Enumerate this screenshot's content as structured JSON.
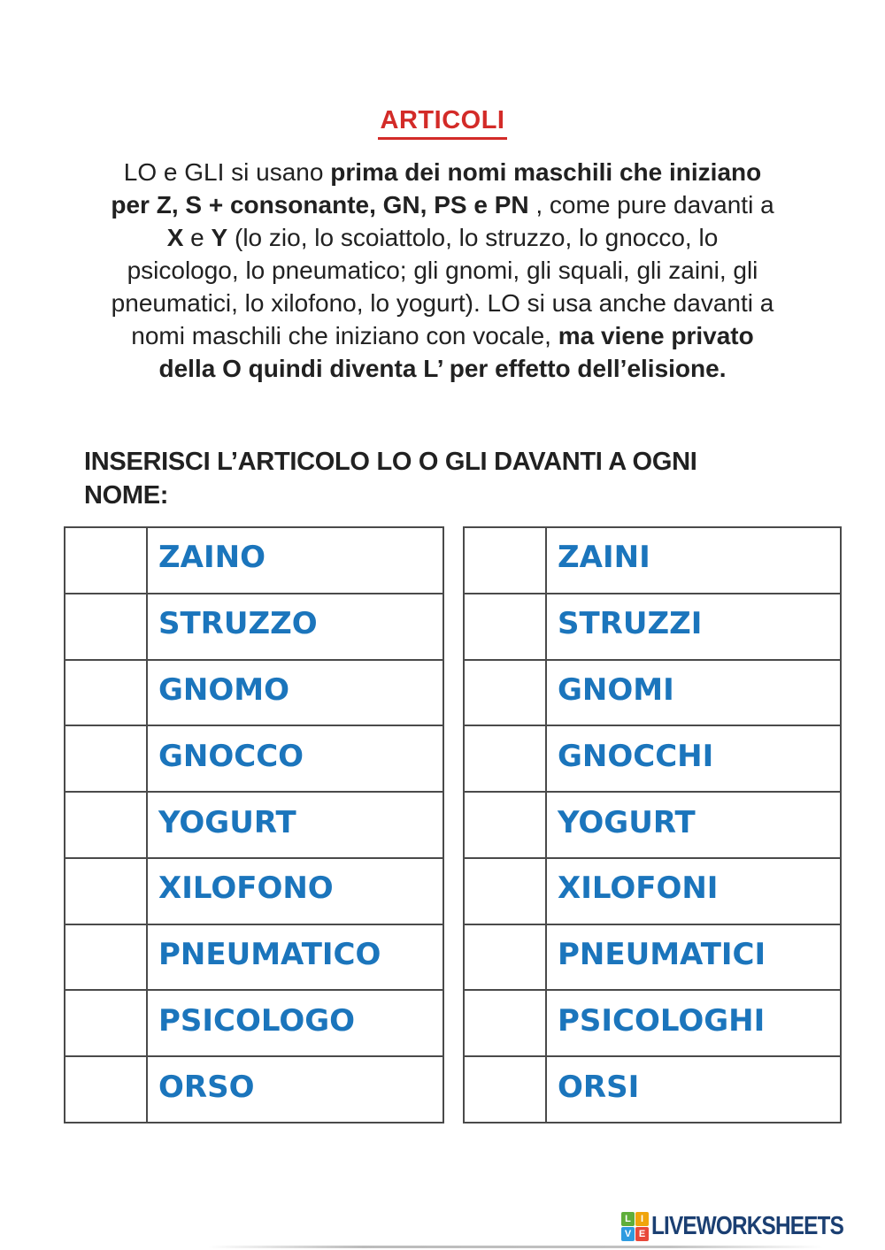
{
  "page": {
    "title": "ARTICOLI"
  },
  "colors": {
    "title_red": "#d32b28",
    "word_blue": "#1b75bc",
    "text_black": "#212121",
    "table_border": "#4a4a4a",
    "logo_navy": "#1b3f72"
  },
  "intro": {
    "lines": [
      [
        {
          "t": "LO e GLI si usano ",
          "b": 0
        },
        {
          "t": "prima dei nomi maschili che iniziano",
          "b": 1
        }
      ],
      [
        {
          "t": "per Z, S + consonante, GN, PS e PN",
          "b": 1
        },
        {
          "t": " , come pure davanti a",
          "b": 0
        }
      ],
      [
        {
          "t": "X",
          "b": 1
        },
        {
          "t": " e ",
          "b": 0
        },
        {
          "t": "Y",
          "b": 1
        },
        {
          "t": " (lo zio, lo scoiattolo, lo struzzo, lo gnocco, lo",
          "b": 0
        }
      ],
      [
        {
          "t": "psicologo, lo pneumatico; gli gnomi, gli squali, gli zaini, gli",
          "b": 0
        }
      ],
      [
        {
          "t": "pneumatici, lo xilofono, lo yogurt). LO si usa anche davanti a",
          "b": 0
        }
      ],
      [
        {
          "t": "nomi maschili che iniziano con vocale, ",
          "b": 0
        },
        {
          "t": "ma viene privato",
          "b": 1
        }
      ],
      [
        {
          "t": "della O quindi diventa L’ per effetto dell’elisione.",
          "b": 1
        }
      ]
    ]
  },
  "instruction": {
    "lines": [
      "INSERISCI L’ARTICOLO LO O GLI DAVANTI A OGNI",
      "NOME:"
    ]
  },
  "worksheet": {
    "answer_value": "",
    "left_table": {
      "words": [
        "ZAINO",
        "STRUZZO",
        "GNOMO",
        "GNOCCO",
        "YOGURT",
        "XILOFONO",
        "PNEUMATICO",
        "PSICOLOGO",
        "ORSO"
      ]
    },
    "right_table": {
      "words": [
        "ZAINI",
        "STRUZZI",
        "GNOMI",
        "GNOCCHI",
        "YOGURT",
        "XILOFONI",
        "PNEUMATICI",
        "PSICOLOGHI",
        "ORSI"
      ]
    }
  },
  "footer": {
    "logo_text": "LIVEWORKSHEETS",
    "logo_squares": [
      {
        "letter": "L",
        "color": "#5fae3a"
      },
      {
        "letter": "I",
        "color": "#f0a50c"
      },
      {
        "letter": "V",
        "color": "#2e9be0"
      },
      {
        "letter": "E",
        "color": "#e8483a"
      }
    ]
  }
}
